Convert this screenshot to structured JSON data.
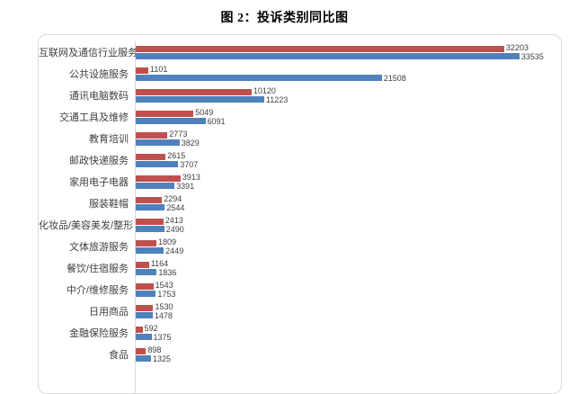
{
  "page": {
    "title": "图 2：投诉类别同比图"
  },
  "colors": {
    "red_series": "#c0504d",
    "blue_series": "#4f81bd",
    "box_border": "#d9d9d9",
    "axis_line": "#d9d9d9",
    "category_text": "#3f3f3f",
    "value_text": "#404040",
    "title_text": "#000000"
  },
  "chart_data": {
    "type": "bar",
    "orientation": "horizontal",
    "title": "图 2：投诉类别同比图",
    "xlabel": "",
    "ylabel": "",
    "xlim": [
      0,
      37000
    ],
    "grid": false,
    "legend_position": "none",
    "value_labels": true,
    "bar_order_in_group_top_to_bottom": [
      "red-series",
      "blue-series"
    ],
    "categories": [
      "互联网及通信行业服务",
      "公共设施服务",
      "通讯电脑数码",
      "交通工具及维修",
      "教育培训",
      "邮政快递服务",
      "家用电子电器",
      "服装鞋帽",
      "化妆品/美容美发/整形",
      "文体旅游服务",
      "餐饮/住宿服务",
      "中介/维修服务",
      "日用商品",
      "金融保险服务",
      "食品"
    ],
    "series": [
      {
        "name": "red-series",
        "color": "#c0504d",
        "values": [
          32203,
          1101,
          10120,
          5049,
          2773,
          2615,
          3913,
          2294,
          2413,
          1809,
          1164,
          1543,
          1530,
          592,
          898
        ]
      },
      {
        "name": "blue-series",
        "color": "#4f81bd",
        "values": [
          33535,
          21508,
          11223,
          6091,
          3829,
          3707,
          3391,
          2544,
          2490,
          2449,
          1836,
          1753,
          1478,
          1375,
          1325
        ]
      }
    ]
  }
}
